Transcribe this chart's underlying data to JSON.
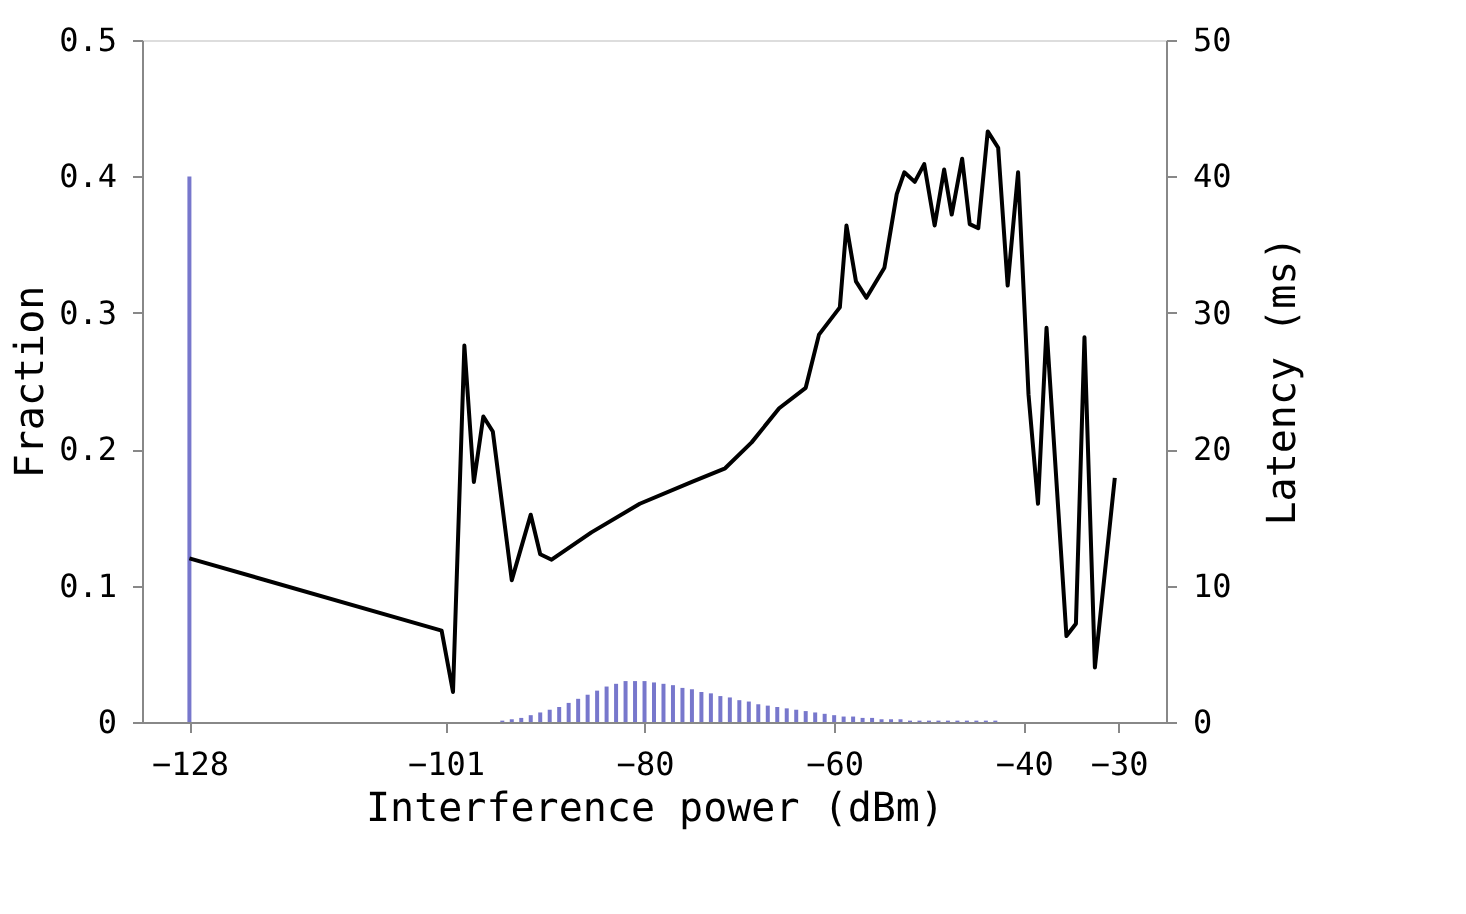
{
  "chart_data": {
    "type": "bar",
    "xlabel": "Interference power (dBm)",
    "ylabel": "Fraction",
    "y2label": "Latency (ms)",
    "xlim": [
      -133,
      -25
    ],
    "xticks": [
      -128,
      -101,
      -80,
      -60,
      -40,
      -30
    ],
    "ylim": [
      0,
      0.5
    ],
    "yticks": [
      {
        "value": 0,
        "label": "0"
      },
      0.1,
      0.2,
      0.3,
      0.4,
      0.5
    ],
    "y2lim": [
      0,
      50
    ],
    "y2ticks": [
      0,
      10,
      20,
      30,
      40,
      50
    ],
    "grid": false,
    "series": [
      {
        "color": "#7777cc",
        "x": [
          -128,
          -95,
          -94,
          -93,
          -92,
          -91,
          -90,
          -89,
          -88,
          -87,
          -86,
          -85,
          -84,
          -83,
          -82,
          -81,
          -80,
          -79,
          -78,
          -77,
          -76,
          -75,
          -74,
          -73,
          -72,
          -71,
          -70,
          -69,
          -68,
          -67,
          -66,
          -65,
          -64,
          -63,
          -62,
          -61,
          -60,
          -59,
          -58,
          -57,
          -56,
          -55,
          -54,
          -53,
          -52,
          -51,
          -50,
          -49,
          -48,
          -47,
          -46,
          -45,
          -44,
          -43
        ],
        "values": [
          0.4,
          0.001,
          0.002,
          0.003,
          0.005,
          0.007,
          0.009,
          0.011,
          0.014,
          0.017,
          0.02,
          0.023,
          0.026,
          0.028,
          0.03,
          0.03,
          0.03,
          0.029,
          0.028,
          0.027,
          0.025,
          0.024,
          0.022,
          0.021,
          0.019,
          0.018,
          0.016,
          0.015,
          0.013,
          0.012,
          0.011,
          0.01,
          0.009,
          0.008,
          0.007,
          0.006,
          0.005,
          0.004,
          0.004,
          0.003,
          0.003,
          0.002,
          0.002,
          0.002,
          0.001,
          0.001,
          0.001,
          0.001,
          0.001,
          0.001,
          0.001,
          0.001,
          0.001,
          0.001
        ]
      },
      {
        "type": "line",
        "axis": "y2",
        "color": "#000000",
        "x": [
          -128,
          -101.4,
          -100.2,
          -99,
          -98,
          -97,
          -96,
          -94,
          -92,
          -91,
          -89.8,
          -85.6,
          -80.5,
          -75,
          -71.5,
          -68.7,
          -65.8,
          -63,
          -61.6,
          -59.4,
          -58.7,
          -57.7,
          -56.6,
          -54.7,
          -53.4,
          -52.6,
          -51.5,
          -50.5,
          -49.4,
          -48.4,
          -47.6,
          -46.5,
          -45.7,
          -44.8,
          -43.8,
          -42.7,
          -41.7,
          -40.6,
          -39.5,
          -38.5,
          -37.6,
          -35.5,
          -34.5,
          -33.6,
          -32.5,
          -30.4
        ],
        "values": [
          12.0,
          6.7,
          2.2,
          27.6,
          17.6,
          22.4,
          21.3,
          10.4,
          15.2,
          12.3,
          11.9,
          13.9,
          16.0,
          17.6,
          18.6,
          20.5,
          23.0,
          24.5,
          28.4,
          30.4,
          36.4,
          32.3,
          31.1,
          33.3,
          38.7,
          40.3,
          39.6,
          40.9,
          36.4,
          40.5,
          37.2,
          41.3,
          36.5,
          36.2,
          43.3,
          42.1,
          32.0,
          40.3,
          24.0,
          16.0,
          28.9,
          6.3,
          7.2,
          28.2,
          4.0,
          17.9
        ]
      }
    ]
  }
}
